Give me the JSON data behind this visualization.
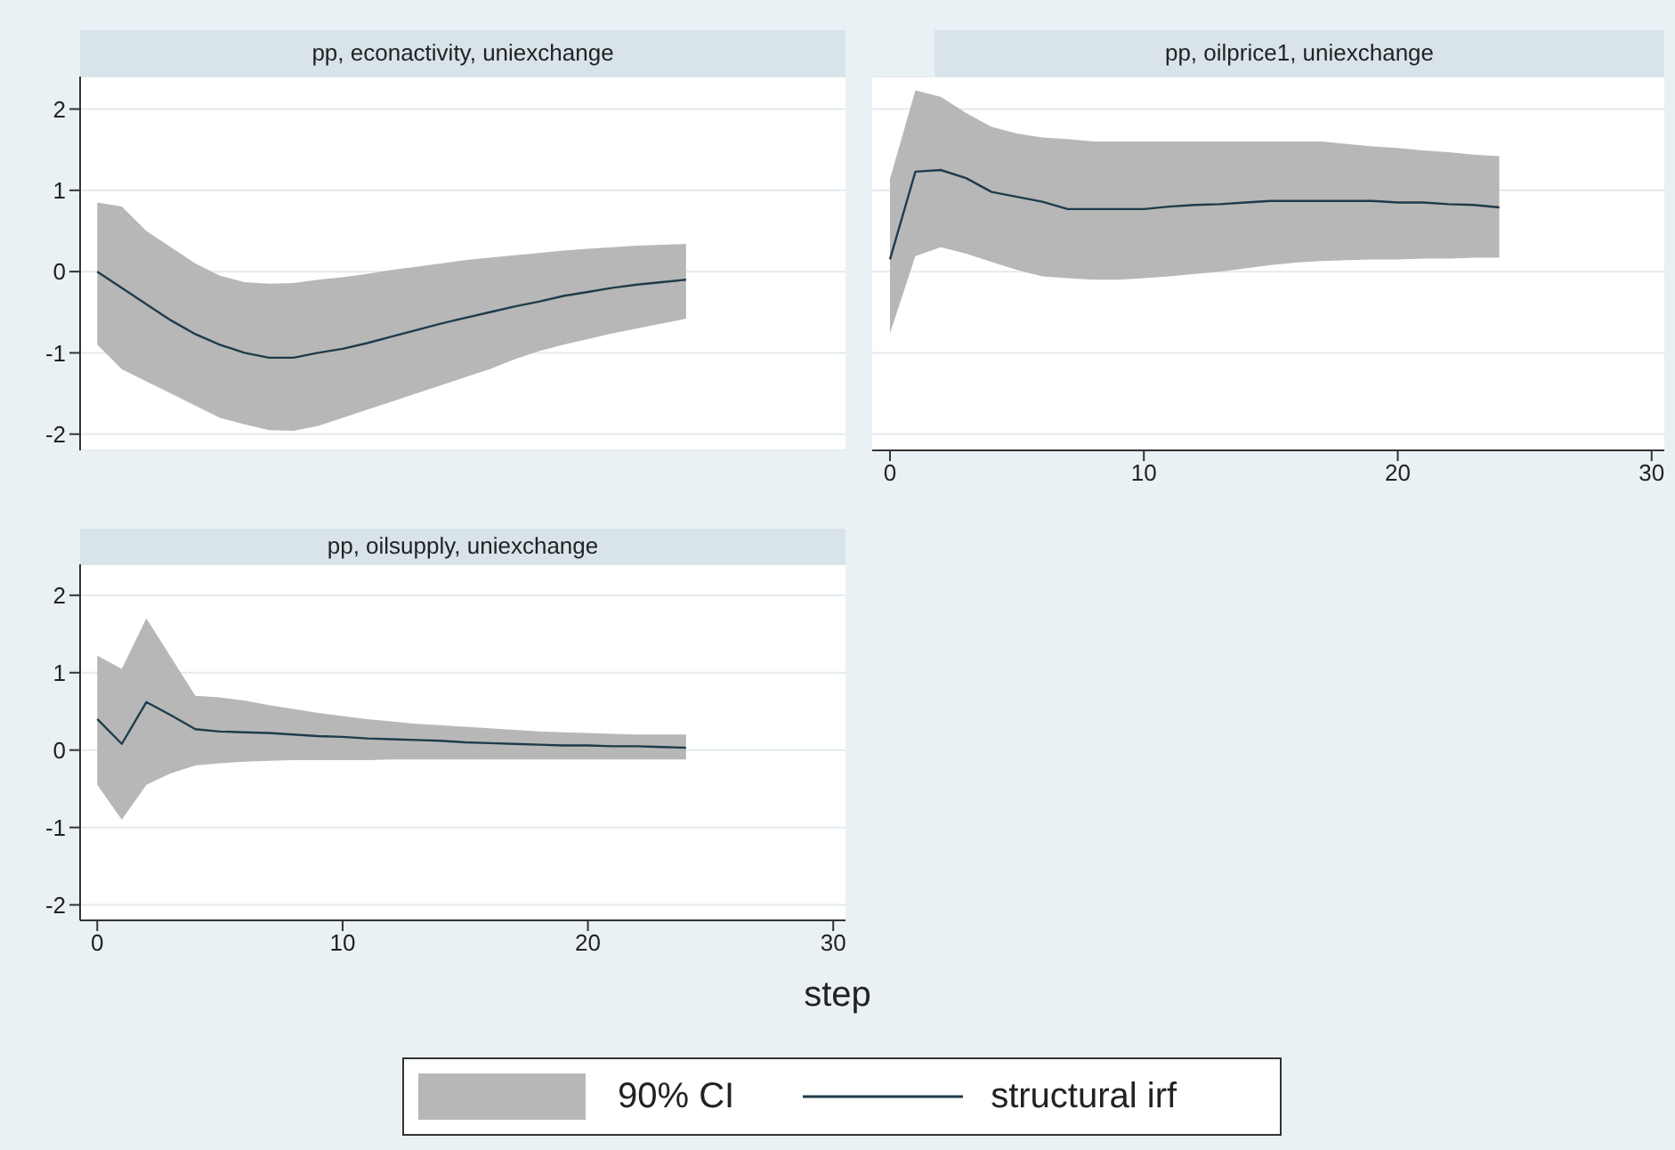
{
  "chart_data": [
    {
      "type": "line",
      "title": "pp, econactivity, uniexchange",
      "x": [
        0,
        1,
        2,
        3,
        4,
        5,
        6,
        7,
        8,
        9,
        10,
        11,
        12,
        13,
        14,
        15,
        16,
        17,
        18,
        19,
        20,
        21,
        22,
        23,
        24
      ],
      "xlim": [
        -0.7,
        30.5
      ],
      "xticks": [
        0,
        10,
        20,
        30
      ],
      "ylim": [
        -2.2,
        2.4
      ],
      "yticks": [
        -2,
        -1,
        0,
        1,
        2
      ],
      "grid": "y",
      "tick_labels": "y",
      "series": [
        {
          "color": "#1f3b4a",
          "values": [
            0,
            -0.2,
            -0.4,
            -0.6,
            -0.77,
            -0.9,
            -1.0,
            -1.06,
            -1.06,
            -1.0,
            -0.95,
            -0.88,
            -0.8,
            -0.72,
            -0.64,
            -0.57,
            -0.5,
            -0.43,
            -0.37,
            -0.3,
            -0.25,
            -0.2,
            -0.16,
            -0.13,
            -0.1
          ],
          "lower": [
            -0.9,
            -1.2,
            -1.35,
            -1.5,
            -1.65,
            -1.8,
            -1.88,
            -1.95,
            -1.96,
            -1.9,
            -1.8,
            -1.7,
            -1.6,
            -1.5,
            -1.4,
            -1.3,
            -1.2,
            -1.08,
            -0.98,
            -0.9,
            -0.83,
            -0.76,
            -0.7,
            -0.64,
            -0.58
          ],
          "upper": [
            0.85,
            0.8,
            0.5,
            0.3,
            0.1,
            -0.05,
            -0.13,
            -0.15,
            -0.14,
            -0.1,
            -0.07,
            -0.03,
            0.02,
            0.06,
            0.1,
            0.14,
            0.17,
            0.2,
            0.23,
            0.26,
            0.28,
            0.3,
            0.32,
            0.33,
            0.34
          ]
        }
      ]
    },
    {
      "type": "line",
      "title": "pp, oilprice1, uniexchange",
      "x": [
        0,
        1,
        2,
        3,
        4,
        5,
        6,
        7,
        8,
        9,
        10,
        11,
        12,
        13,
        14,
        15,
        16,
        17,
        18,
        19,
        20,
        21,
        22,
        23,
        24
      ],
      "xlim": [
        -0.7,
        30.5
      ],
      "xticks": [
        0,
        10,
        20,
        30
      ],
      "ylim": [
        -2.2,
        2.4
      ],
      "yticks": [
        -2,
        -1,
        0,
        1,
        2
      ],
      "grid": "y",
      "tick_labels": "x",
      "series": [
        {
          "color": "#1f3b4a",
          "values": [
            0.15,
            1.23,
            1.25,
            1.15,
            0.98,
            0.92,
            0.86,
            0.77,
            0.77,
            0.77,
            0.77,
            0.8,
            0.82,
            0.83,
            0.85,
            0.87,
            0.87,
            0.87,
            0.87,
            0.87,
            0.85,
            0.85,
            0.83,
            0.82,
            0.79
          ],
          "lower": [
            -0.76,
            0.19,
            0.3,
            0.22,
            0.12,
            0.02,
            -0.06,
            -0.08,
            -0.1,
            -0.1,
            -0.08,
            -0.06,
            -0.03,
            0,
            0.04,
            0.08,
            0.11,
            0.13,
            0.14,
            0.15,
            0.15,
            0.16,
            0.16,
            0.17,
            0.17
          ],
          "upper": [
            1.14,
            2.23,
            2.15,
            1.95,
            1.78,
            1.7,
            1.65,
            1.63,
            1.6,
            1.6,
            1.6,
            1.6,
            1.6,
            1.6,
            1.6,
            1.6,
            1.6,
            1.6,
            1.57,
            1.54,
            1.52,
            1.49,
            1.47,
            1.44,
            1.42
          ]
        }
      ]
    },
    {
      "type": "line",
      "title": "pp, oilsupply, uniexchange",
      "xlabel": "step",
      "legend": "bottom",
      "annotations": [
        "90% CI"
      ],
      "x": [
        0,
        1,
        2,
        3,
        4,
        5,
        6,
        7,
        8,
        9,
        10,
        11,
        12,
        13,
        14,
        15,
        16,
        17,
        18,
        19,
        20,
        21,
        22,
        23,
        24
      ],
      "xlim": [
        -0.7,
        30.5
      ],
      "xticks": [
        0,
        10,
        20,
        30
      ],
      "ylim": [
        -2.2,
        2.4
      ],
      "yticks": [
        -2,
        -1,
        0,
        1,
        2
      ],
      "grid": "y",
      "series": [
        {
          "name": "structural irf",
          "color": "#1f3b4a",
          "values": [
            0.4,
            0.08,
            0.62,
            0.45,
            0.27,
            0.24,
            0.23,
            0.22,
            0.2,
            0.18,
            0.17,
            0.15,
            0.14,
            0.13,
            0.12,
            0.1,
            0.09,
            0.08,
            0.07,
            0.06,
            0.06,
            0.05,
            0.05,
            0.04,
            0.03
          ],
          "lower": [
            -0.45,
            -0.9,
            -0.45,
            -0.3,
            -0.2,
            -0.17,
            -0.15,
            -0.14,
            -0.13,
            -0.13,
            -0.13,
            -0.13,
            -0.12,
            -0.12,
            -0.12,
            -0.12,
            -0.12,
            -0.12,
            -0.12,
            -0.12,
            -0.12,
            -0.12,
            -0.12,
            -0.12,
            -0.12
          ],
          "upper": [
            1.22,
            1.05,
            1.7,
            1.2,
            0.7,
            0.68,
            0.64,
            0.58,
            0.53,
            0.48,
            0.44,
            0.4,
            0.37,
            0.34,
            0.32,
            0.3,
            0.28,
            0.26,
            0.24,
            0.23,
            0.22,
            0.21,
            0.2,
            0.2,
            0.2
          ]
        }
      ]
    }
  ]
}
